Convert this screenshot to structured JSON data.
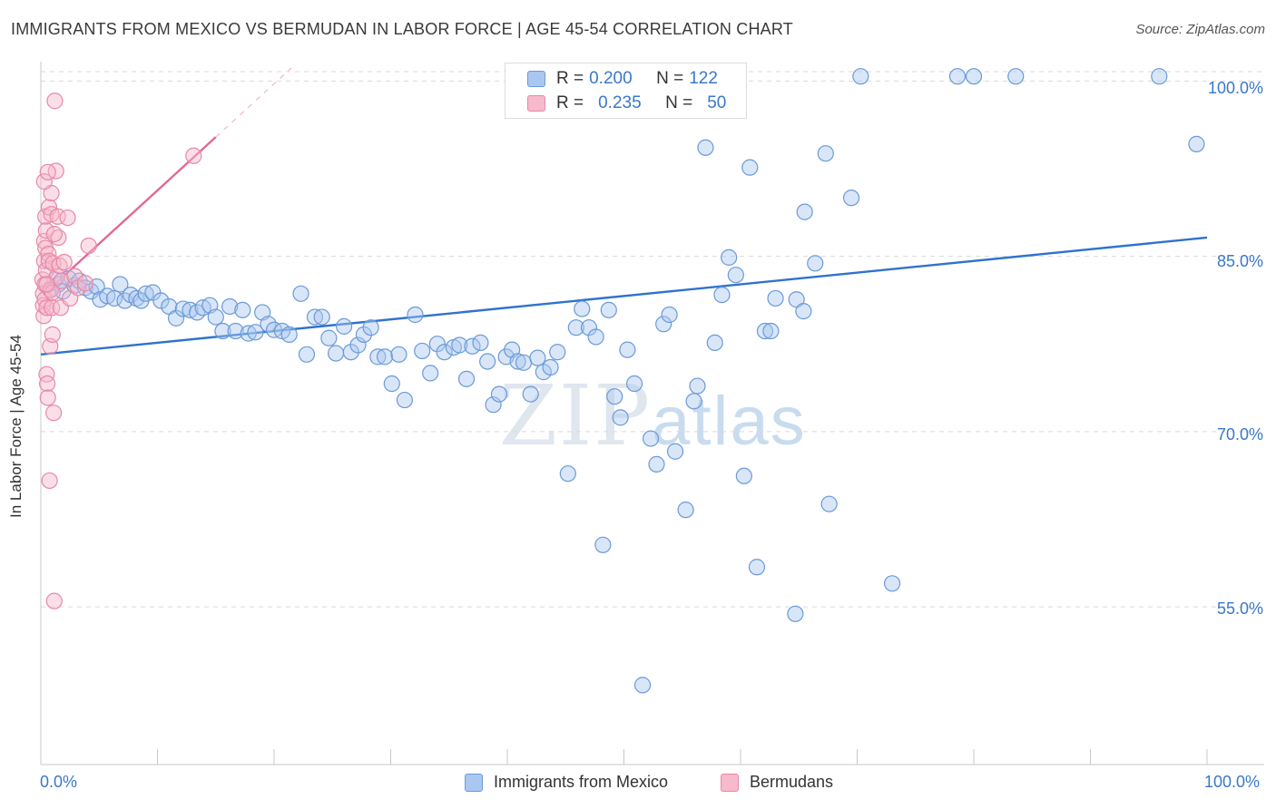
{
  "title": "IMMIGRANTS FROM MEXICO VS BERMUDAN IN LABOR FORCE | AGE 45-54 CORRELATION CHART",
  "source": "Source: ZipAtlas.com",
  "watermark": {
    "zip": "ZIP",
    "atlas": "atlas"
  },
  "legend": {
    "series1": {
      "r_label": "R = ",
      "r_value": "0.200",
      "n_label": "N = ",
      "n_value": "122"
    },
    "series2": {
      "r_label": "R = ",
      "r_value": "0.235",
      "n_label": "N = ",
      "n_value": "50"
    }
  },
  "colors": {
    "blue_fill": "#aac8ef",
    "blue_stroke": "#6a9ad8",
    "blue_line": "#2f72cf",
    "pink_fill": "#f7b9cc",
    "pink_stroke": "#e888a6",
    "pink_line": "#e06a92",
    "grid": "#d9d9d9",
    "tick_text": "#3a78c9"
  },
  "chart_data": {
    "type": "scatter",
    "title": "IMMIGRANTS FROM MEXICO VS BERMUDAN IN LABOR FORCE | AGE 45-54 CORRELATION CHART",
    "xlabel": "",
    "ylabel": "In Labor Force | Age 45-54",
    "xlim": [
      0,
      100
    ],
    "ylim": [
      41.5,
      101.5
    ],
    "x_tick_labels": [
      "0.0%",
      "100.0%"
    ],
    "y_ticks": [
      55,
      70,
      85,
      100
    ],
    "y_tick_labels": [
      "55.0%",
      "70.0%",
      "85.0%",
      "100.0%"
    ],
    "gridlines": "horizontal dashed",
    "legend_position": "top-center",
    "series": [
      {
        "name": "Immigrants from Mexico",
        "color": "blue",
        "r": 0.2,
        "n": 122,
        "trend": {
          "x": [
            0,
            100
          ],
          "y": [
            76.6,
            86.6
          ]
        },
        "points": [
          [
            0.8,
            82.2
          ],
          [
            1.2,
            83.0
          ],
          [
            1.5,
            82.6
          ],
          [
            1.9,
            82.0
          ],
          [
            2.4,
            83.1
          ],
          [
            2.9,
            82.5
          ],
          [
            3.3,
            82.9
          ],
          [
            3.8,
            82.3
          ],
          [
            4.3,
            82.0
          ],
          [
            4.8,
            82.4
          ],
          [
            5.1,
            81.3
          ],
          [
            5.7,
            81.6
          ],
          [
            6.3,
            81.4
          ],
          [
            6.8,
            82.6
          ],
          [
            7.2,
            81.2
          ],
          [
            7.7,
            81.7
          ],
          [
            8.2,
            81.4
          ],
          [
            8.6,
            81.2
          ],
          [
            9.0,
            81.8
          ],
          [
            9.6,
            81.9
          ],
          [
            10.3,
            81.2
          ],
          [
            11.0,
            80.7
          ],
          [
            11.6,
            79.7
          ],
          [
            12.2,
            80.5
          ],
          [
            12.8,
            80.4
          ],
          [
            13.4,
            80.2
          ],
          [
            13.9,
            80.6
          ],
          [
            14.5,
            80.8
          ],
          [
            15.0,
            79.8
          ],
          [
            15.6,
            78.6
          ],
          [
            16.2,
            80.7
          ],
          [
            16.7,
            78.6
          ],
          [
            17.3,
            80.4
          ],
          [
            17.8,
            78.4
          ],
          [
            18.4,
            78.5
          ],
          [
            19.0,
            80.2
          ],
          [
            19.5,
            79.2
          ],
          [
            20.0,
            78.7
          ],
          [
            20.7,
            78.6
          ],
          [
            21.3,
            78.3
          ],
          [
            22.3,
            81.8
          ],
          [
            22.8,
            76.6
          ],
          [
            23.5,
            79.8
          ],
          [
            24.1,
            79.8
          ],
          [
            24.7,
            78.0
          ],
          [
            25.3,
            76.7
          ],
          [
            26.0,
            79.0
          ],
          [
            26.6,
            76.8
          ],
          [
            27.2,
            77.4
          ],
          [
            27.7,
            78.3
          ],
          [
            28.3,
            78.9
          ],
          [
            28.9,
            76.4
          ],
          [
            29.5,
            76.4
          ],
          [
            30.1,
            74.1
          ],
          [
            30.7,
            76.6
          ],
          [
            31.2,
            72.7
          ],
          [
            32.1,
            80.0
          ],
          [
            32.7,
            76.9
          ],
          [
            33.4,
            75.0
          ],
          [
            34.0,
            77.5
          ],
          [
            34.6,
            76.8
          ],
          [
            35.4,
            77.2
          ],
          [
            35.9,
            77.4
          ],
          [
            36.5,
            74.5
          ],
          [
            37.0,
            77.3
          ],
          [
            37.7,
            77.6
          ],
          [
            38.3,
            76.0
          ],
          [
            38.8,
            72.3
          ],
          [
            39.3,
            73.2
          ],
          [
            39.9,
            76.4
          ],
          [
            40.4,
            77.0
          ],
          [
            40.9,
            76.0
          ],
          [
            41.4,
            75.9
          ],
          [
            42.0,
            73.2
          ],
          [
            42.6,
            76.3
          ],
          [
            43.1,
            75.1
          ],
          [
            43.7,
            75.5
          ],
          [
            44.3,
            76.8
          ],
          [
            45.2,
            66.4
          ],
          [
            45.9,
            78.9
          ],
          [
            46.4,
            80.5
          ],
          [
            47.0,
            78.9
          ],
          [
            47.6,
            78.1
          ],
          [
            48.2,
            60.3
          ],
          [
            48.7,
            80.4
          ],
          [
            49.2,
            73.0
          ],
          [
            49.7,
            71.2
          ],
          [
            50.3,
            77.0
          ],
          [
            50.9,
            74.1
          ],
          [
            51.6,
            48.3
          ],
          [
            52.3,
            69.4
          ],
          [
            52.8,
            67.2
          ],
          [
            53.4,
            79.2
          ],
          [
            53.9,
            80.0
          ],
          [
            54.4,
            68.3
          ],
          [
            55.3,
            63.3
          ],
          [
            56.0,
            72.6
          ],
          [
            56.3,
            73.9
          ],
          [
            57.0,
            94.3
          ],
          [
            57.8,
            77.6
          ],
          [
            58.4,
            81.7
          ],
          [
            59.0,
            84.9
          ],
          [
            59.6,
            83.4
          ],
          [
            60.3,
            66.2
          ],
          [
            60.8,
            92.6
          ],
          [
            61.4,
            58.4
          ],
          [
            62.1,
            78.6
          ],
          [
            62.6,
            78.6
          ],
          [
            63.0,
            81.4
          ],
          [
            64.7,
            54.4
          ],
          [
            64.8,
            81.3
          ],
          [
            65.4,
            80.3
          ],
          [
            65.5,
            88.8
          ],
          [
            66.4,
            84.4
          ],
          [
            67.3,
            93.8
          ],
          [
            67.6,
            63.8
          ],
          [
            69.5,
            90.0
          ],
          [
            70.3,
            100.4
          ],
          [
            73.0,
            57.0
          ],
          [
            78.6,
            100.4
          ],
          [
            80.0,
            100.4
          ],
          [
            83.6,
            100.4
          ],
          [
            95.9,
            100.4
          ],
          [
            99.1,
            94.6
          ]
        ]
      },
      {
        "name": "Bermudans",
        "color": "pink",
        "r": 0.235,
        "n": 50,
        "trend": {
          "x": [
            0.2,
            15.0
          ],
          "y": [
            81.7,
            95.2
          ]
        },
        "points": [
          [
            0.15,
            83.0
          ],
          [
            0.2,
            81.8
          ],
          [
            0.2,
            80.8
          ],
          [
            0.25,
            79.9
          ],
          [
            0.3,
            84.6
          ],
          [
            0.3,
            86.3
          ],
          [
            0.35,
            82.6
          ],
          [
            0.35,
            81.3
          ],
          [
            0.4,
            85.7
          ],
          [
            0.4,
            88.4
          ],
          [
            0.45,
            87.2
          ],
          [
            0.45,
            83.8
          ],
          [
            0.5,
            80.6
          ],
          [
            0.5,
            74.9
          ],
          [
            0.55,
            74.1
          ],
          [
            0.6,
            72.9
          ],
          [
            0.65,
            85.2
          ],
          [
            0.7,
            89.2
          ],
          [
            0.7,
            84.6
          ],
          [
            0.75,
            65.8
          ],
          [
            0.8,
            77.3
          ],
          [
            0.85,
            82.1
          ],
          [
            0.9,
            90.4
          ],
          [
            0.9,
            88.6
          ],
          [
            0.95,
            80.6
          ],
          [
            1.0,
            78.3
          ],
          [
            1.0,
            81.9
          ],
          [
            1.05,
            84.4
          ],
          [
            1.1,
            71.6
          ],
          [
            1.15,
            55.5
          ],
          [
            1.2,
            98.3
          ],
          [
            1.3,
            92.3
          ],
          [
            1.4,
            83.3
          ],
          [
            1.45,
            88.4
          ],
          [
            1.5,
            86.6
          ],
          [
            1.6,
            84.2
          ],
          [
            1.7,
            80.6
          ],
          [
            1.8,
            82.9
          ],
          [
            2.0,
            84.5
          ],
          [
            2.3,
            88.3
          ],
          [
            2.5,
            81.4
          ],
          [
            2.9,
            83.3
          ],
          [
            3.2,
            82.3
          ],
          [
            3.8,
            82.7
          ],
          [
            4.1,
            85.9
          ],
          [
            0.3,
            91.4
          ],
          [
            0.6,
            92.2
          ],
          [
            1.15,
            86.9
          ],
          [
            0.5,
            82.6
          ],
          [
            13.1,
            93.6
          ]
        ]
      }
    ]
  },
  "bottom_legend": {
    "series1": "Immigrants from Mexico",
    "series2": "Bermudans"
  }
}
